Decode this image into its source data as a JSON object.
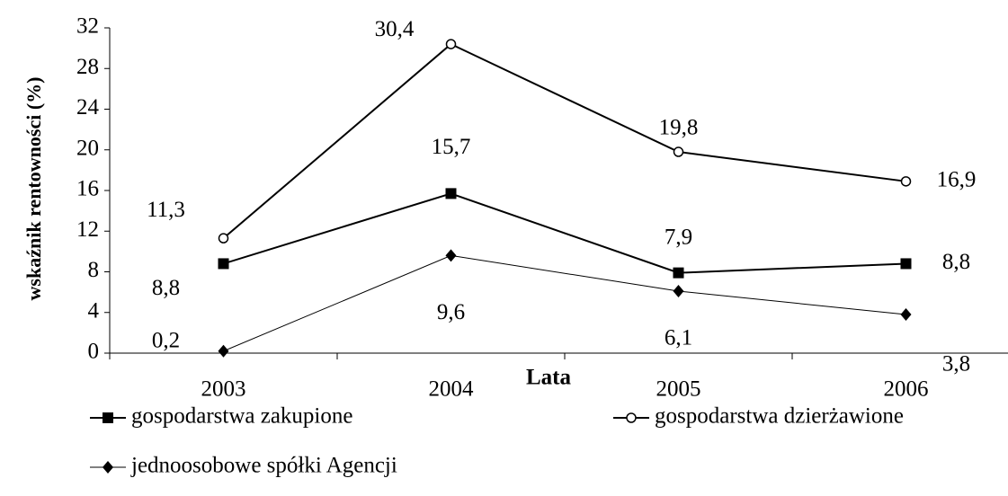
{
  "chart_data": {
    "type": "line",
    "x_label": "Lata",
    "y_label": "wskaźnik rentowności   (%)",
    "categories": [
      "2003",
      "2004",
      "2005",
      "2006"
    ],
    "series": [
      {
        "name": "gospodarstwa zakupione",
        "color": "#000000",
        "marker": "square",
        "values": [
          8.8,
          15.7,
          7.9,
          8.8
        ],
        "value_labels": [
          "8,8",
          "15,7",
          "7,9",
          "8,8"
        ]
      },
      {
        "name": "gospodarstwa dzierżawione",
        "color": "#000000",
        "marker": "circle",
        "values": [
          11.3,
          30.4,
          19.8,
          16.9
        ],
        "value_labels": [
          "11,3",
          "30,4",
          "19,8",
          "16,9"
        ]
      },
      {
        "name": "jednoosobowe spółki Agencji",
        "color": "#000000",
        "marker": "diamond",
        "values": [
          0.2,
          9.6,
          6.1,
          3.8
        ],
        "value_labels": [
          "0,2",
          "9,6",
          "6,1",
          "3,8"
        ]
      }
    ],
    "ylim": [
      0,
      32
    ],
    "yticks": [
      0,
      4,
      8,
      12,
      16,
      20,
      24,
      28,
      32
    ],
    "grid": false
  }
}
